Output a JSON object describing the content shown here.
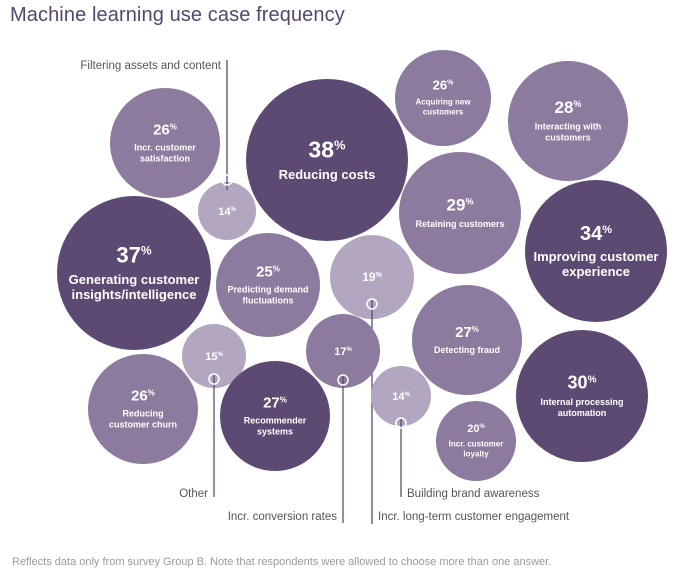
{
  "title": "Machine learning use case frequency",
  "footnote": "Reflects data only from survey Group B. Note that respondents were allowed to choose more than one answer.",
  "colors": {
    "dark": "#5d4a72",
    "mid": "#8c7a9f",
    "light": "#b2a6c1",
    "title": "#56466d"
  },
  "chart_data": {
    "type": "bubble",
    "title": "Machine learning use case frequency",
    "unit": "%",
    "items": [
      {
        "label": "Filtering assets and content",
        "value": 14
      },
      {
        "label": "Incr. customer satisfaction",
        "value": 26
      },
      {
        "label": "Reducing costs",
        "value": 38
      },
      {
        "label": "Acquiring new customers",
        "value": 26
      },
      {
        "label": "Interacting with customers",
        "value": 28
      },
      {
        "label": "Retaining customers",
        "value": 29
      },
      {
        "label": "Improving customer experience",
        "value": 34
      },
      {
        "label": "Generating customer insights/intelligence",
        "value": 37
      },
      {
        "label": "Predicting demand fluctuations",
        "value": 25
      },
      {
        "label": "Incr. long-term customer engagement",
        "value": 19
      },
      {
        "label": "Other",
        "value": 15
      },
      {
        "label": "Incr. conversion rates",
        "value": 17
      },
      {
        "label": "Detecting fraud",
        "value": 27
      },
      {
        "label": "Reducing customer churn",
        "value": 26
      },
      {
        "label": "Recommender systems",
        "value": 27
      },
      {
        "label": "Building brand awareness",
        "value": 14
      },
      {
        "label": "Incr. customer loyalty",
        "value": 20
      },
      {
        "label": "Internal processing automation",
        "value": 30
      }
    ]
  }
}
